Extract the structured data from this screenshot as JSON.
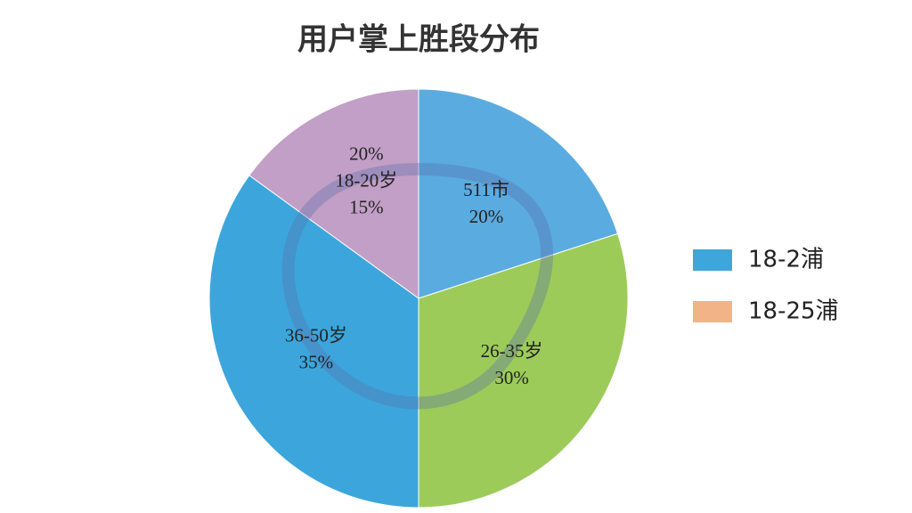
{
  "chart_data": {
    "type": "pie",
    "title": "用户掌上胜段分布",
    "categories": [
      "511市",
      "26-35岁",
      "36-50岁",
      "18-20岁"
    ],
    "values": [
      20,
      30,
      35,
      15
    ],
    "value_labels": [
      "20%",
      "30%",
      "35%",
      "15%"
    ],
    "colors": [
      "#5aabe0",
      "#9ccb5a",
      "#3ca6dc",
      "#c29fc6"
    ],
    "annotation": "20%",
    "legend": [
      {
        "name": "18-2浦",
        "color": "#3fa6dc"
      },
      {
        "name": "18-25浦",
        "color": "#f2b387"
      }
    ],
    "legend_position": "right"
  }
}
